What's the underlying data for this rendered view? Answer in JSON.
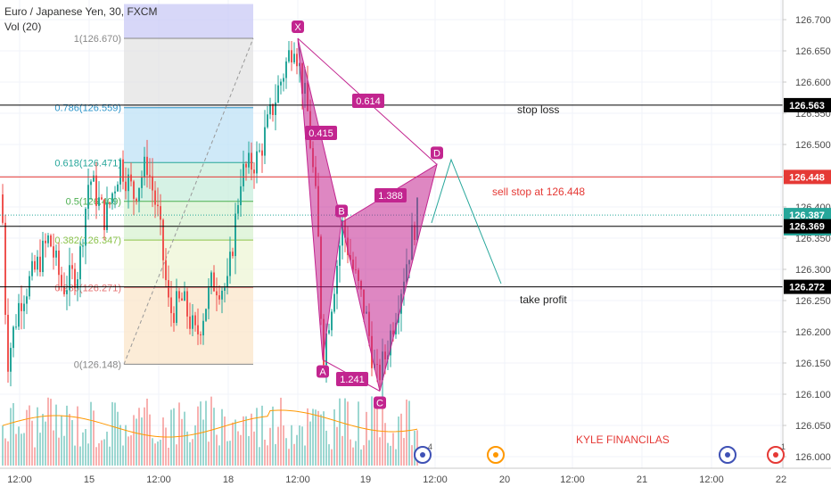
{
  "header": {
    "title": "Euro / Japanese Yen, 30, FXCM",
    "indicator": "Vol (20)"
  },
  "colors": {
    "up": "#26a69a",
    "down": "#ef5350",
    "pattern": "#c2258f",
    "level": "#000000",
    "sell": "#e53935",
    "projection": "#26a69a"
  },
  "chart_data": {
    "type": "candlestick",
    "y_axis": {
      "range": [
        125.975,
        126.725
      ],
      "ticks": [
        "126.700",
        "126.650",
        "126.600",
        "126.550",
        "126.500",
        "126.450",
        "126.400",
        "126.350",
        "126.300",
        "126.250",
        "126.200",
        "126.150",
        "126.100",
        "126.050",
        "126.000"
      ]
    },
    "x_axis": {
      "ticks": [
        "12:00",
        "15",
        "12:00",
        "18",
        "12:00",
        "19",
        "12:00",
        "20",
        "12:00",
        "21",
        "12:00",
        "22"
      ]
    },
    "price_markers": [
      {
        "label": "126.563",
        "value": 126.563,
        "kind": "level"
      },
      {
        "label": "126.448",
        "value": 126.448,
        "kind": "sell"
      },
      {
        "label": "126.387",
        "value": 126.387,
        "kind": "last"
      },
      {
        "label": "11:26",
        "value": 126.375,
        "kind": "timer"
      },
      {
        "label": "126.369",
        "value": 126.369,
        "kind": "level"
      },
      {
        "label": "126.272",
        "value": 126.272,
        "kind": "level"
      }
    ],
    "fibonacci": [
      {
        "label": "1(126.670)",
        "value": 126.67
      },
      {
        "label": "0.786(126.559)",
        "value": 126.559
      },
      {
        "label": "0.618(126.471)",
        "value": 126.471
      },
      {
        "label": "0.5(126.409)",
        "value": 126.409
      },
      {
        "label": "0.382(126.347)",
        "value": 126.347
      },
      {
        "label": "0.236(126.271)",
        "value": 126.271
      },
      {
        "label": "0(126.148)",
        "value": 126.148
      }
    ],
    "harmonic_pattern": {
      "points": [
        {
          "label": "X",
          "price": 126.67
        },
        {
          "label": "A",
          "price": 126.155
        },
        {
          "label": "B",
          "price": 126.375
        },
        {
          "label": "C",
          "price": 126.105
        },
        {
          "label": "D",
          "price": 126.468
        }
      ],
      "ratios": [
        "0.614",
        "0.415",
        "1.388",
        "1.241"
      ]
    },
    "annotations": {
      "stop_loss": "stop loss",
      "sell_stop": "sell stop at 126.448",
      "take_profit": "take profit",
      "author": "KYLE FINANCILAS"
    },
    "event_badges": [
      "4",
      "",
      "",
      "1"
    ],
    "horizontal_levels": [
      126.563,
      126.448,
      126.369,
      126.272
    ]
  }
}
